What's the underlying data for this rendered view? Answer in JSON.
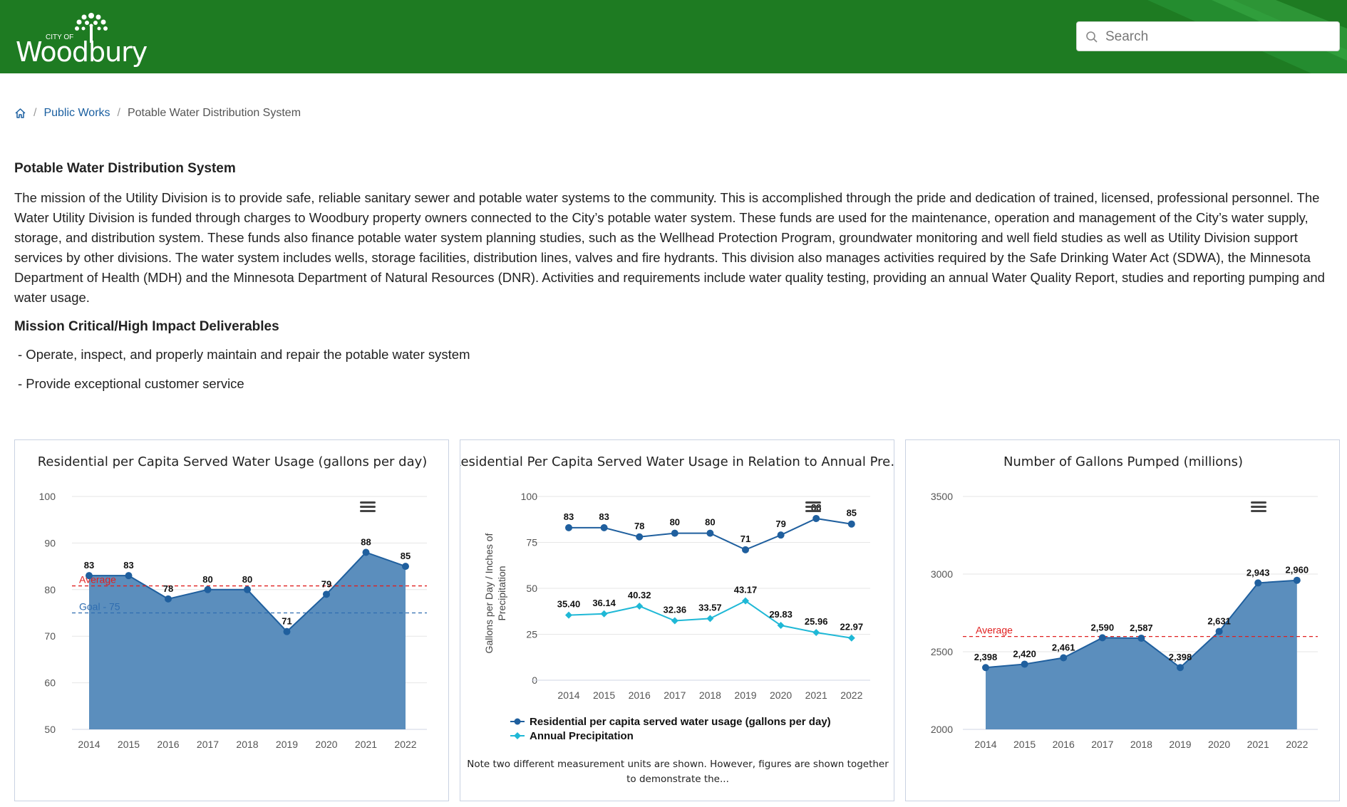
{
  "header": {
    "logo_small": "CITY OF",
    "logo_main": "Woodbury",
    "colors": {
      "bar": "#1e7b22",
      "stripe": "#2a9a3a"
    }
  },
  "search": {
    "placeholder": "Search",
    "icon": "search-icon"
  },
  "breadcrumb": {
    "home_icon": "home-icon",
    "items": [
      "Public Works",
      "Potable Water Distribution System"
    ]
  },
  "content": {
    "title": "Potable Water Distribution System",
    "body": "The mission of the Utility Division is to provide safe, reliable sanitary sewer and potable water systems to the community. This is accomplished through the pride and dedication of trained, licensed, professional personnel. The Water Utility Division is funded through charges to Woodbury property owners connected to the City’s potable water system. These funds are used for the maintenance, operation and management of the City’s water supply, storage, and distribution system. These funds also finance potable water system planning studies, such as the Wellhead Protection Program, groundwater monitoring and well field studies as well as Utility Division support services by other divisions. The water system includes wells, storage facilities, distribution lines, valves and fire hydrants. This division also manages activities required by the Safe Drinking Water Act (SDWA), the Minnesota Department of Health (MDH) and the Minnesota Department of Natural Resources (DNR). Activities and requirements include water quality testing, providing an annual Water Quality Report, studies and reporting pumping and water usage.",
    "subtitle": "Mission Critical/High Impact Deliverables",
    "deliverables": [
      "- Operate, inspect, and properly maintain and repair the potable water system",
      "- Provide exceptional customer service"
    ]
  },
  "chart_data": [
    {
      "type": "area",
      "title": "Residential per Capita Served Water Usage (gallons per day)",
      "categories": [
        "2014",
        "2015",
        "2016",
        "2017",
        "2018",
        "2019",
        "2020",
        "2021",
        "2022"
      ],
      "values": [
        83,
        83,
        78,
        80,
        80,
        71,
        79,
        88,
        85
      ],
      "labels": [
        "83",
        "83",
        "78",
        "80",
        "80",
        "71",
        "79",
        "88",
        "85"
      ],
      "ylim": [
        50,
        100
      ],
      "yticks": [
        "50",
        "60",
        "70",
        "80",
        "90",
        "100"
      ],
      "reference_lines": [
        {
          "label": "Average",
          "value": 80.8,
          "color": "#e02020"
        },
        {
          "label": "Goal - 75",
          "value": 75,
          "color": "#2f6db0"
        }
      ],
      "fill_color": "#5b8ebd",
      "line_color": "#1f5f9e",
      "menu_icon": "menu-icon"
    },
    {
      "type": "line",
      "title": "Residential Per Capita Served Water Usage in Relation to Annual Pre…",
      "ylabel": "Gallons per Day / Inches of Precipitation",
      "categories": [
        "2014",
        "2015",
        "2016",
        "2017",
        "2018",
        "2019",
        "2020",
        "2021",
        "2022"
      ],
      "ylim": [
        0,
        100
      ],
      "yticks": [
        "0",
        "25",
        "50",
        "75",
        "100"
      ],
      "series": [
        {
          "name": "Residential per capita served water usage (gallons per day)",
          "values": [
            83,
            83,
            78,
            80,
            80,
            71,
            79,
            88,
            85
          ],
          "labels": [
            "83",
            "83",
            "78",
            "80",
            "80",
            "71",
            "79",
            "88",
            "85"
          ],
          "color": "#1f5f9e"
        },
        {
          "name": "Annual Precipitation",
          "values": [
            35.4,
            36.14,
            40.32,
            32.36,
            33.57,
            43.17,
            29.83,
            25.96,
            22.97
          ],
          "labels": [
            "35.40",
            "36.14",
            "40.32",
            "32.36",
            "33.57",
            "43.17",
            "29.83",
            "25.96",
            "22.97"
          ],
          "color": "#1fb8d6"
        }
      ],
      "note_lines": [
        "Note two different measurement units are shown. However, figures are shown together",
        "to demonstrate the..."
      ],
      "menu_icon": "menu-icon"
    },
    {
      "type": "area",
      "title": "Number of Gallons Pumped (millions)",
      "categories": [
        "2014",
        "2015",
        "2016",
        "2017",
        "2018",
        "2019",
        "2020",
        "2021",
        "2022"
      ],
      "values": [
        2398,
        2420,
        2461,
        2590,
        2587,
        2398,
        2631,
        2943,
        2960
      ],
      "labels": [
        "2,398",
        "2,420",
        "2,461",
        "2,590",
        "2,587",
        "2,398",
        "2,631",
        "2,943",
        "2,960"
      ],
      "ylim": [
        2000,
        3500
      ],
      "yticks": [
        "2000",
        "2500",
        "3000",
        "3500"
      ],
      "reference_lines": [
        {
          "label": "Average",
          "value": 2598,
          "color": "#e02020"
        }
      ],
      "fill_color": "#5b8ebd",
      "line_color": "#1f5f9e",
      "menu_icon": "menu-icon"
    }
  ]
}
